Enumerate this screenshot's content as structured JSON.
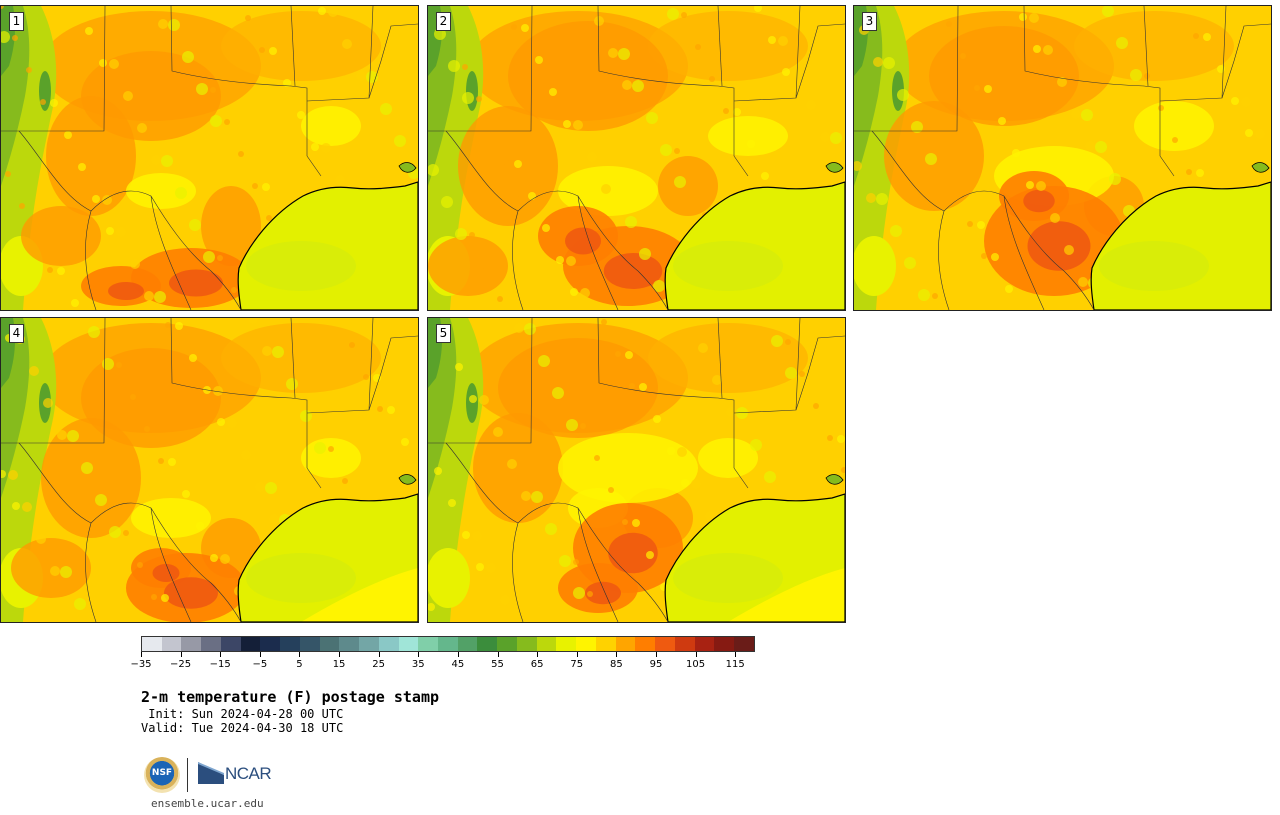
{
  "panels": [
    {
      "label": "1",
      "variant": 0
    },
    {
      "label": "2",
      "variant": 1
    },
    {
      "label": "3",
      "variant": 2
    },
    {
      "label": "4",
      "variant": 3
    },
    {
      "label": "5",
      "variant": 4
    }
  ],
  "colorbar": {
    "colors": [
      "#e6e9ee",
      "#c3c5cf",
      "#9799a6",
      "#6a6f84",
      "#3c4666",
      "#141f38",
      "#1b2c4d",
      "#25405c",
      "#355568",
      "#4b7274",
      "#5e8a8c",
      "#73a6a6",
      "#8ac8c6",
      "#a0e5d8",
      "#80cfa9",
      "#64b78c",
      "#52a167",
      "#3b8d3c",
      "#5aa22a",
      "#86bb1d",
      "#bcd80c",
      "#e8f200",
      "#fff400",
      "#ffd200",
      "#ffa500",
      "#ff7e00",
      "#ef5a10",
      "#cf3a10",
      "#a82212",
      "#861a12",
      "#6a1c18"
    ],
    "tick_labels": [
      "−35",
      "−25",
      "−15",
      "−5",
      "5",
      "15",
      "25",
      "35",
      "45",
      "55",
      "65",
      "75",
      "85",
      "95",
      "105",
      "115"
    ],
    "min": -35,
    "max": 120,
    "step": 5
  },
  "title": "2-m temperature (F) postage stamp",
  "init": " Init: Sun 2024-04-28 00 UTC",
  "valid": "Valid: Tue 2024-04-30 18 UTC",
  "logos": {
    "nsf": "NSF",
    "ncar": "NCAR"
  },
  "url": "ensemble.ucar.edu"
}
